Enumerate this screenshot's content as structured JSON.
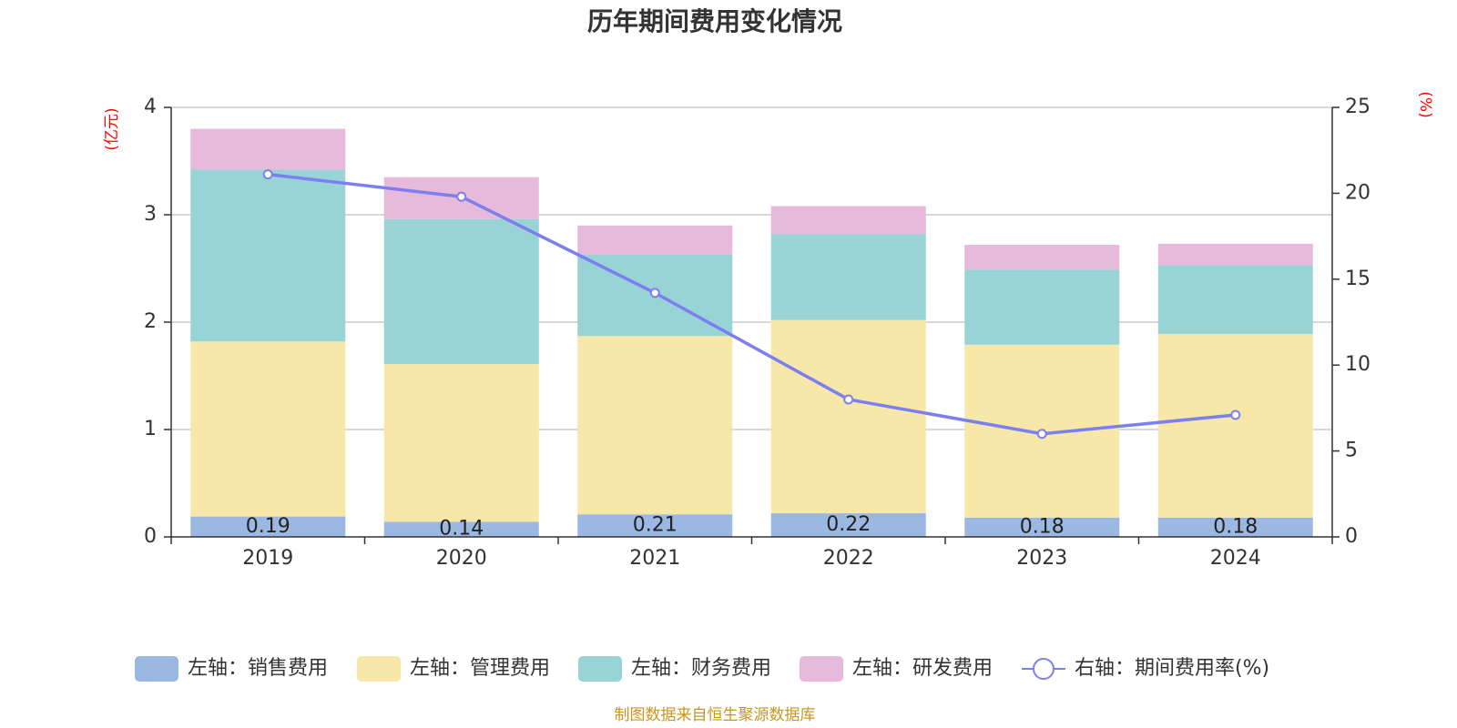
{
  "chart_data": {
    "type": "bar",
    "stacked": true,
    "title": "历年期间费用变化情况",
    "categories": [
      "2019",
      "2020",
      "2021",
      "2022",
      "2023",
      "2024"
    ],
    "left_axis": {
      "unit": "(亿元)",
      "ylim": [
        0,
        4
      ],
      "ticks": [
        "0",
        "1",
        "2",
        "3",
        "4"
      ]
    },
    "right_axis": {
      "unit": "(%)",
      "ylim": [
        0,
        25
      ],
      "ticks": [
        "0",
        "5",
        "10",
        "15",
        "20",
        "25"
      ]
    },
    "grid": true,
    "legend_position": "bottom",
    "series": [
      {
        "name": "左轴：销售费用",
        "type": "bar",
        "axis": "left",
        "color": "#9bb8e3",
        "values": [
          0.19,
          0.14,
          0.21,
          0.22,
          0.18,
          0.18
        ],
        "labels": [
          "0.19",
          "0.14",
          "0.21",
          "0.22",
          "0.18",
          "0.18"
        ]
      },
      {
        "name": "左轴：管理费用",
        "type": "bar",
        "axis": "left",
        "color": "#f7e7a8",
        "values": [
          1.63,
          1.47,
          1.66,
          1.8,
          1.61,
          1.71
        ]
      },
      {
        "name": "左轴：财务费用",
        "type": "bar",
        "axis": "left",
        "color": "#98d3d5",
        "values": [
          1.6,
          1.35,
          0.76,
          0.8,
          0.7,
          0.64
        ]
      },
      {
        "name": "左轴：研发费用",
        "type": "bar",
        "axis": "left",
        "color": "#e7b9da",
        "values": [
          0.38,
          0.39,
          0.27,
          0.26,
          0.23,
          0.2
        ]
      },
      {
        "name": "右轴：期间费用率(%)",
        "type": "line",
        "axis": "right",
        "color": "#7b7ff0",
        "values": [
          21.1,
          19.8,
          14.2,
          8.0,
          6.0,
          7.1
        ]
      }
    ]
  },
  "source_text": "制图数据来自恒生聚源数据库"
}
